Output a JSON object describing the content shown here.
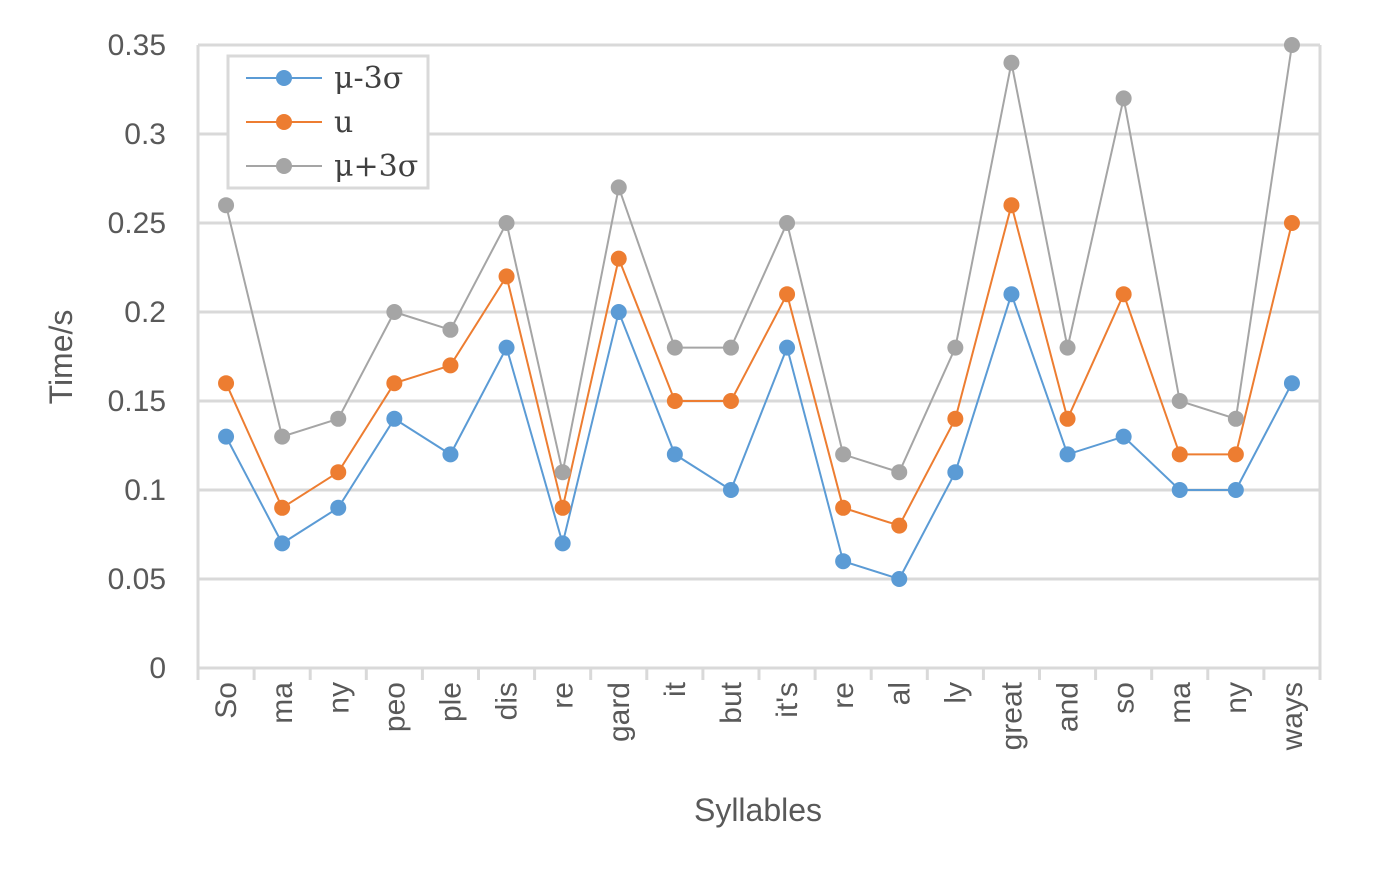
{
  "chart_data": {
    "type": "line",
    "title": "",
    "xlabel": "Syllables",
    "ylabel": "Time/s",
    "categories": [
      "So",
      "ma",
      "ny",
      "peo",
      "ple",
      "dis",
      "re",
      "gard",
      "it",
      "but",
      "it's",
      "re",
      "al",
      "ly",
      "great",
      "and",
      "so",
      "ma",
      "ny",
      "ways"
    ],
    "ylim": [
      0,
      0.35
    ],
    "yticks": [
      0,
      0.05,
      0.1,
      0.15,
      0.2,
      0.25,
      0.3,
      0.35
    ],
    "ytick_labels": [
      "0",
      "0.05",
      "0.1",
      "0.15",
      "0.2",
      "0.25",
      "0.3",
      "0.35"
    ],
    "grid": true,
    "legend_position": "top-left",
    "series": [
      {
        "name": "μ-3σ",
        "color": "#5B9BD5",
        "values": [
          0.13,
          0.07,
          0.09,
          0.14,
          0.12,
          0.18,
          0.07,
          0.2,
          0.12,
          0.1,
          0.18,
          0.06,
          0.05,
          0.11,
          0.21,
          0.12,
          0.13,
          0.1,
          0.1,
          0.16
        ]
      },
      {
        "name": "u",
        "color": "#ED7D31",
        "values": [
          0.16,
          0.09,
          0.11,
          0.16,
          0.17,
          0.22,
          0.09,
          0.23,
          0.15,
          0.15,
          0.21,
          0.09,
          0.08,
          0.14,
          0.26,
          0.14,
          0.21,
          0.12,
          0.12,
          0.25
        ]
      },
      {
        "name": "μ+3σ",
        "color": "#A5A5A5",
        "values": [
          0.26,
          0.13,
          0.14,
          0.2,
          0.19,
          0.25,
          0.11,
          0.27,
          0.18,
          0.18,
          0.25,
          0.12,
          0.11,
          0.18,
          0.34,
          0.18,
          0.32,
          0.15,
          0.14,
          0.35
        ]
      }
    ]
  }
}
